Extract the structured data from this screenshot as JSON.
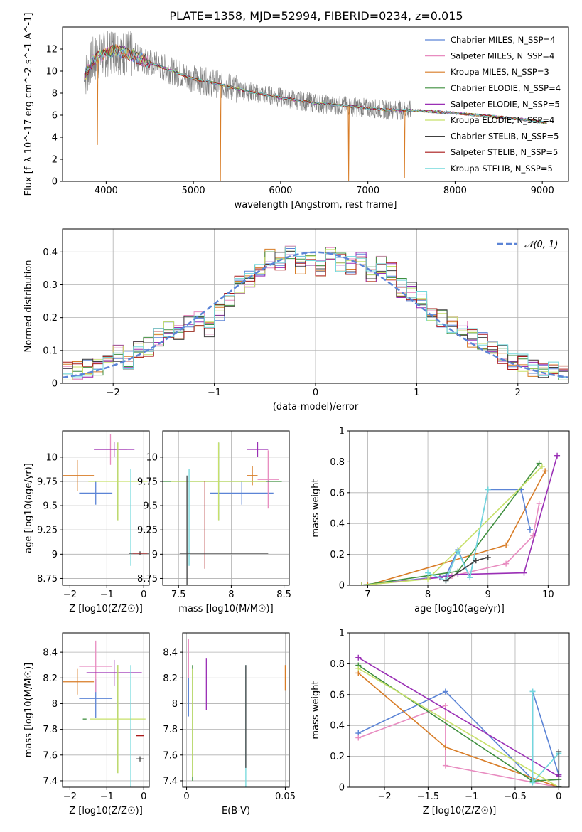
{
  "figure": {
    "title": "PLATE=1358, MJD=52994, FIBERID=0234, z=0.015"
  },
  "legend_series": [
    {
      "name": "Chabrier MILES, N_SSP=4",
      "color": "#5b84d6"
    },
    {
      "name": "Salpeter MILES, N_SSP=4",
      "color": "#e88cc0"
    },
    {
      "name": "Kroupa MILES, N_SSP=3",
      "color": "#d87c26"
    },
    {
      "name": "Chabrier ELODIE, N_SSP=4",
      "color": "#3f8f3f"
    },
    {
      "name": "Salpeter ELODIE, N_SSP=5",
      "color": "#9a2fb5"
    },
    {
      "name": "Kroupa ELODIE, N_SSP=4",
      "color": "#c7e06a"
    },
    {
      "name": "Chabrier STELIB, N_SSP=5",
      "color": "#404040"
    },
    {
      "name": "Salpeter STELIB, N_SSP=5",
      "color": "#a81818"
    },
    {
      "name": "Kroupa STELIB, N_SSP=5",
      "color": "#72d8dc"
    }
  ],
  "chart_data": [
    {
      "id": "spectrum",
      "type": "line",
      "xlabel": "wavelength [Angstrom, rest frame]",
      "ylabel": "Flux [f_λ 10^-17 erg cm^-2 s^-1 A^-1]",
      "xlim": [
        3500,
        9300
      ],
      "ylim": [
        0,
        14
      ],
      "xticks": [
        4000,
        5000,
        6000,
        7000,
        8000,
        9000
      ],
      "yticks": [
        0,
        2,
        4,
        6,
        8,
        10,
        12
      ],
      "data_color": "#808080",
      "continuum": {
        "x": [
          3750,
          3850,
          4000,
          4100,
          4300,
          4500,
          4800,
          5000,
          5300,
          5600,
          6000,
          6400,
          6800,
          7200,
          7600,
          8000,
          8400,
          8800,
          9050
        ],
        "y": [
          9.5,
          11.0,
          11.6,
          12.0,
          11.4,
          10.8,
          9.9,
          9.3,
          8.8,
          8.2,
          7.6,
          7.1,
          6.8,
          6.5,
          6.4,
          6.2,
          5.9,
          5.6,
          5.3
        ]
      },
      "dips": [
        {
          "x": 3900,
          "y": 3.3
        },
        {
          "x": 5310,
          "y": 0.0
        },
        {
          "x": 6780,
          "y": 0.0
        },
        {
          "x": 7420,
          "y": 0.3
        }
      ]
    },
    {
      "id": "residuals",
      "type": "line",
      "xlabel": "(data-model)/error",
      "ylabel": "Normed distribution",
      "xlim": [
        -2.5,
        2.5
      ],
      "ylim": [
        0,
        0.47
      ],
      "xticks": [
        -2,
        -1,
        0,
        1,
        2
      ],
      "yticks": [
        0.0,
        0.1,
        0.2,
        0.3,
        0.4
      ],
      "gaussian_label": "𝒩(0, 1)",
      "gaussian_color": "#5b84d6",
      "bins": [
        -2.5,
        -2.4,
        -2.3,
        -2.2,
        -2.1,
        -2.0,
        -1.9,
        -1.8,
        -1.7,
        -1.6,
        -1.5,
        -1.4,
        -1.3,
        -1.2,
        -1.1,
        -1.0,
        -0.9,
        -0.8,
        -0.7,
        -0.6,
        -0.5,
        -0.4,
        -0.3,
        -0.2,
        -0.1,
        0.0,
        0.1,
        0.2,
        0.3,
        0.4,
        0.5,
        0.6,
        0.7,
        0.8,
        0.9,
        1.0,
        1.1,
        1.2,
        1.3,
        1.4,
        1.5,
        1.6,
        1.7,
        1.8,
        1.9,
        2.0,
        2.1,
        2.2,
        2.3,
        2.4,
        2.5
      ],
      "hist_base": [
        0.035,
        0.04,
        0.045,
        0.05,
        0.06,
        0.09,
        0.07,
        0.1,
        0.11,
        0.14,
        0.16,
        0.15,
        0.18,
        0.19,
        0.17,
        0.22,
        0.25,
        0.3,
        0.32,
        0.35,
        0.38,
        0.37,
        0.39,
        0.36,
        0.38,
        0.35,
        0.39,
        0.37,
        0.36,
        0.38,
        0.33,
        0.36,
        0.34,
        0.29,
        0.28,
        0.26,
        0.22,
        0.2,
        0.18,
        0.17,
        0.14,
        0.13,
        0.12,
        0.09,
        0.07,
        0.06,
        0.05,
        0.045,
        0.04,
        0.03
      ]
    },
    {
      "id": "age-vs-Z",
      "type": "scatter",
      "xlabel": "Z [log10(Z/Z☉)]",
      "ylabel": "age  [log10(age/yr)]",
      "xlim": [
        -2.2,
        0.15
      ],
      "ylim": [
        8.68,
        10.27
      ],
      "xticks": [
        -2,
        -1,
        0
      ],
      "yticks": [
        8.75,
        9.0,
        9.25,
        9.5,
        9.75,
        10.0
      ],
      "points": [
        {
          "x": -1.8,
          "y": 9.81,
          "xerr": 0.45,
          "yerr": 0.16,
          "color": "#d87c26"
        },
        {
          "x": -1.3,
          "y": 9.63,
          "xerr": 0.45,
          "yerr": 0.12,
          "color": "#5b84d6"
        },
        {
          "x": -0.9,
          "y": 10.08,
          "xerr": 0.45,
          "yerr": 0.16,
          "color": "#e88cc0"
        },
        {
          "x": -0.8,
          "y": 10.08,
          "xerr": 0.55,
          "yerr": 0.08,
          "color": "#9a2fb5"
        },
        {
          "x": -0.7,
          "y": 9.75,
          "xerr": 0.0,
          "yerr": 0.4,
          "color": "#3f8f3f"
        },
        {
          "x": -0.7,
          "y": 9.75,
          "xerr": 0.8,
          "yerr": 0.4,
          "color": "#c7e06a"
        },
        {
          "x": -0.35,
          "y": 9.38,
          "xerr": 0.0,
          "yerr": 0.5,
          "color": "#72d8dc"
        },
        {
          "x": -0.1,
          "y": 9.01,
          "xerr": 0.3,
          "yerr": 0.02,
          "color": "#404040"
        },
        {
          "x": -0.1,
          "y": 9.01,
          "xerr": 0.2,
          "yerr": 0.0,
          "color": "#a81818"
        }
      ]
    },
    {
      "id": "age-vs-mass",
      "type": "scatter",
      "xlabel": "mass [log10(M/M☉)]",
      "ylabel": "",
      "xlim": [
        7.35,
        8.55
      ],
      "ylim": [
        8.68,
        10.27
      ],
      "xticks": [
        7.5,
        8.0,
        8.5
      ],
      "yticks": [
        8.75,
        9.0,
        9.25,
        9.5,
        9.75,
        10.0
      ],
      "points": [
        {
          "x": 8.2,
          "y": 9.81,
          "xerr": 0.05,
          "yerr": 0.1,
          "color": "#d87c26"
        },
        {
          "x": 8.1,
          "y": 9.63,
          "xerr": 0.3,
          "yerr": 0.12,
          "color": "#5b84d6"
        },
        {
          "x": 8.35,
          "y": 9.77,
          "xerr": 0.1,
          "yerr": 0.3,
          "color": "#e88cc0"
        },
        {
          "x": 8.25,
          "y": 10.08,
          "xerr": 0.1,
          "yerr": 0.08,
          "color": "#9a2fb5"
        },
        {
          "x": 7.88,
          "y": 9.75,
          "xerr": 0.6,
          "yerr": 0.4,
          "color": "#3f8f3f"
        },
        {
          "x": 7.88,
          "y": 9.75,
          "xerr": 0.45,
          "yerr": 0.4,
          "color": "#c7e06a"
        },
        {
          "x": 7.6,
          "y": 9.38,
          "xerr": 0.0,
          "yerr": 0.5,
          "color": "#72d8dc"
        },
        {
          "x": 7.58,
          "y": 9.01,
          "xerr": 0.0,
          "yerr": 0.8,
          "color": "#404040"
        },
        {
          "x": 7.75,
          "y": 9.3,
          "xerr": 0.0,
          "yerr": 0.45,
          "color": "#a81818"
        },
        {
          "x": 7.93,
          "y": 9.01,
          "xerr": 0.42,
          "yerr": 0.0,
          "color": "#404040"
        }
      ]
    },
    {
      "id": "mass-weight-vs-age",
      "type": "line",
      "xlabel": "age  [log10(age/yr)]",
      "ylabel": "mass weight",
      "xlim": [
        6.7,
        10.35
      ],
      "ylim": [
        0,
        1.0
      ],
      "xticks": [
        7,
        8,
        9,
        10
      ],
      "yticks": [
        0.0,
        0.2,
        0.4,
        0.6,
        0.8,
        1.0
      ],
      "series": [
        {
          "color": "#d87c26",
          "x": [
            7.0,
            9.3,
            9.95
          ],
          "y": [
            0.0,
            0.26,
            0.74
          ]
        },
        {
          "color": "#5b84d6",
          "x": [
            6.9,
            8.3,
            8.5,
            8.7,
            9.0,
            9.55,
            9.7
          ],
          "y": [
            0.0,
            0.06,
            0.23,
            0.05,
            0.62,
            0.62,
            0.36
          ]
        },
        {
          "color": "#e88cc0",
          "x": [
            6.9,
            8.4,
            9.3,
            9.75,
            9.85
          ],
          "y": [
            0.0,
            0.06,
            0.14,
            0.32,
            0.53
          ]
        },
        {
          "color": "#9a2fb5",
          "x": [
            6.9,
            8.2,
            8.5,
            9.6,
            10.15
          ],
          "y": [
            0.0,
            0.05,
            0.07,
            0.08,
            0.84
          ]
        },
        {
          "color": "#3f8f3f",
          "x": [
            6.9,
            8.5,
            9.85
          ],
          "y": [
            0.0,
            0.09,
            0.79
          ]
        },
        {
          "color": "#c7e06a",
          "x": [
            6.9,
            8.0,
            9.9
          ],
          "y": [
            0.0,
            0.04,
            0.77
          ]
        },
        {
          "color": "#72d8dc",
          "x": [
            8.0,
            8.3,
            8.5,
            8.7,
            9.0
          ],
          "y": [
            0.08,
            0.03,
            0.22,
            0.05,
            0.62
          ]
        },
        {
          "color": "#404040",
          "x": [
            8.3,
            8.8,
            9.0
          ],
          "y": [
            0.03,
            0.16,
            0.18
          ]
        }
      ]
    },
    {
      "id": "mass-vs-Z",
      "type": "scatter",
      "xlabel": "Z [log10(Z/Z☉)]",
      "ylabel": "mass [log10(M/M☉)]",
      "xlim": [
        -2.2,
        0.15
      ],
      "ylim": [
        7.35,
        8.55
      ],
      "xticks": [
        -2,
        -1,
        0
      ],
      "yticks": [
        7.4,
        7.6,
        7.8,
        8.0,
        8.2,
        8.4
      ],
      "points": [
        {
          "x": -1.8,
          "y": 8.17,
          "xerr": 0.45,
          "yerr": 0.1,
          "color": "#d87c26"
        },
        {
          "x": -1.3,
          "y": 8.04,
          "xerr": 0.45,
          "yerr": 0.15,
          "color": "#5b84d6"
        },
        {
          "x": -1.3,
          "y": 8.29,
          "xerr": 0.45,
          "yerr": 0.2,
          "color": "#e88cc0"
        },
        {
          "x": -0.8,
          "y": 8.24,
          "xerr": 0.75,
          "yerr": 0.1,
          "color": "#9a2fb5"
        },
        {
          "x": -0.7,
          "y": 7.88,
          "xerr": 0.0,
          "yerr": 0.42,
          "color": "#3f8f3f"
        },
        {
          "x": -0.7,
          "y": 7.88,
          "xerr": 0.75,
          "yerr": 0.42,
          "color": "#c7e06a"
        },
        {
          "x": -0.35,
          "y": 7.8,
          "xerr": 0.0,
          "yerr": 0.5,
          "color": "#72d8dc"
        },
        {
          "x": -0.1,
          "y": 7.57,
          "xerr": 0.1,
          "yerr": 0.02,
          "color": "#404040"
        },
        {
          "x": -0.1,
          "y": 7.75,
          "xerr": 0.1,
          "yerr": 0.0,
          "color": "#a81818"
        },
        {
          "x": -1.6,
          "y": 7.88,
          "xerr": 0.05,
          "yerr": 0.0,
          "color": "#3f8f3f"
        }
      ]
    },
    {
      "id": "mass-vs-ebv",
      "type": "scatter",
      "xlabel": "E(B-V)",
      "ylabel": "",
      "xlim": [
        -0.002,
        0.052
      ],
      "ylim": [
        7.35,
        8.55
      ],
      "xticks": [
        0.0,
        0.05
      ],
      "yticks": [
        7.4,
        7.6,
        7.8,
        8.0,
        8.2,
        8.4
      ],
      "points": [
        {
          "x": 0.001,
          "y": 8.3,
          "xerr": 0.0,
          "yerr": 0.2,
          "color": "#e88cc0"
        },
        {
          "x": 0.001,
          "y": 8.05,
          "xerr": 0.0,
          "yerr": 0.15,
          "color": "#5b84d6"
        },
        {
          "x": 0.003,
          "y": 7.85,
          "xerr": 0.0,
          "yerr": 0.45,
          "color": "#3f8f3f"
        },
        {
          "x": 0.003,
          "y": 7.85,
          "xerr": 0.0,
          "yerr": 0.42,
          "color": "#c7e06a"
        },
        {
          "x": 0.01,
          "y": 8.15,
          "xerr": 0.0,
          "yerr": 0.2,
          "color": "#9a2fb5"
        },
        {
          "x": 0.03,
          "y": 7.8,
          "xerr": 0.0,
          "yerr": 0.5,
          "color": "#72d8dc"
        },
        {
          "x": 0.03,
          "y": 7.9,
          "xerr": 0.0,
          "yerr": 0.4,
          "color": "#404040"
        },
        {
          "x": 0.05,
          "y": 8.2,
          "xerr": 0.0,
          "yerr": 0.1,
          "color": "#d87c26"
        }
      ]
    },
    {
      "id": "mass-weight-vs-Z",
      "type": "line",
      "xlabel": "Z [log10(Z/Z☉)]",
      "ylabel": "mass weight",
      "xlim": [
        -2.4,
        0.12
      ],
      "ylim": [
        0,
        1.0
      ],
      "xticks": [
        -2.0,
        -1.5,
        -1.0,
        -0.5,
        0.0
      ],
      "yticks": [
        0.0,
        0.2,
        0.4,
        0.6,
        0.8,
        1.0
      ],
      "series": [
        {
          "color": "#5b84d6",
          "x": [
            -2.3,
            -1.3,
            -0.3,
            -0.3,
            0.0
          ],
          "y": [
            0.35,
            0.62,
            0.05,
            0.62,
            0.08
          ]
        },
        {
          "color": "#e88cc0",
          "x": [
            -2.3,
            -1.3,
            -1.3,
            0.0
          ],
          "y": [
            0.32,
            0.53,
            0.14,
            0.0
          ]
        },
        {
          "color": "#d87c26",
          "x": [
            -2.3,
            -1.3,
            0.0
          ],
          "y": [
            0.74,
            0.26,
            0.0
          ]
        },
        {
          "color": "#9a2fb5",
          "x": [
            -2.3,
            0.0,
            0.0
          ],
          "y": [
            0.84,
            0.07,
            0.08
          ]
        },
        {
          "color": "#3f8f3f",
          "x": [
            -2.3,
            -0.3,
            0.0
          ],
          "y": [
            0.79,
            0.04,
            0.05
          ]
        },
        {
          "color": "#c7e06a",
          "x": [
            -2.3,
            0.0
          ],
          "y": [
            0.77,
            0.0
          ]
        },
        {
          "color": "#72d8dc",
          "x": [
            -0.3,
            -0.3,
            0.0,
            0.0
          ],
          "y": [
            0.62,
            0.03,
            0.22,
            0.0
          ]
        },
        {
          "color": "#404040",
          "x": [
            0.0,
            0.0
          ],
          "y": [
            0.23,
            0.0
          ]
        }
      ]
    }
  ]
}
